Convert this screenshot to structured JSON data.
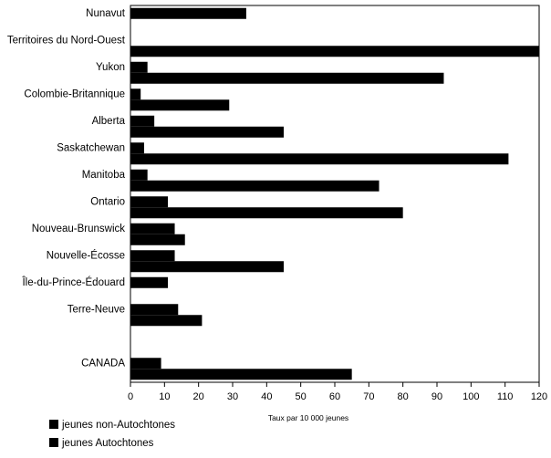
{
  "chart_data": {
    "type": "bar",
    "orientation": "horizontal",
    "categories": [
      "Nunavut",
      "Territoires du Nord-Ouest",
      "Yukon",
      "Colombie-Britannique",
      "Alberta",
      "Saskatchewan",
      "Manitoba",
      "Ontario",
      "Nouveau-Brunswick",
      "Nouvelle-Écosse",
      "Île-du-Prince-Édouard",
      "Terre-Neuve",
      "",
      "CANADA"
    ],
    "series": [
      {
        "name": "jeunes  non-Autochtones",
        "values": [
          34,
          0,
          5,
          3,
          7,
          4,
          5,
          11,
          13,
          13,
          11,
          14,
          null,
          9
        ]
      },
      {
        "name": "jeunes  Autochtones",
        "values": [
          0,
          121,
          92,
          29,
          45,
          111,
          73,
          80,
          16,
          45,
          0,
          21,
          null,
          65
        ]
      }
    ],
    "title": "",
    "xlabel": "Taux par 10 000 jeunes",
    "ylabel": "",
    "xlim": [
      0,
      120
    ],
    "xticks": [
      0,
      10,
      20,
      30,
      40,
      50,
      60,
      70,
      80,
      90,
      100,
      110,
      120
    ],
    "grid": false,
    "legend_position": "bottom-left",
    "colors": {
      "bars": "#000000",
      "axis": "#000000"
    }
  }
}
